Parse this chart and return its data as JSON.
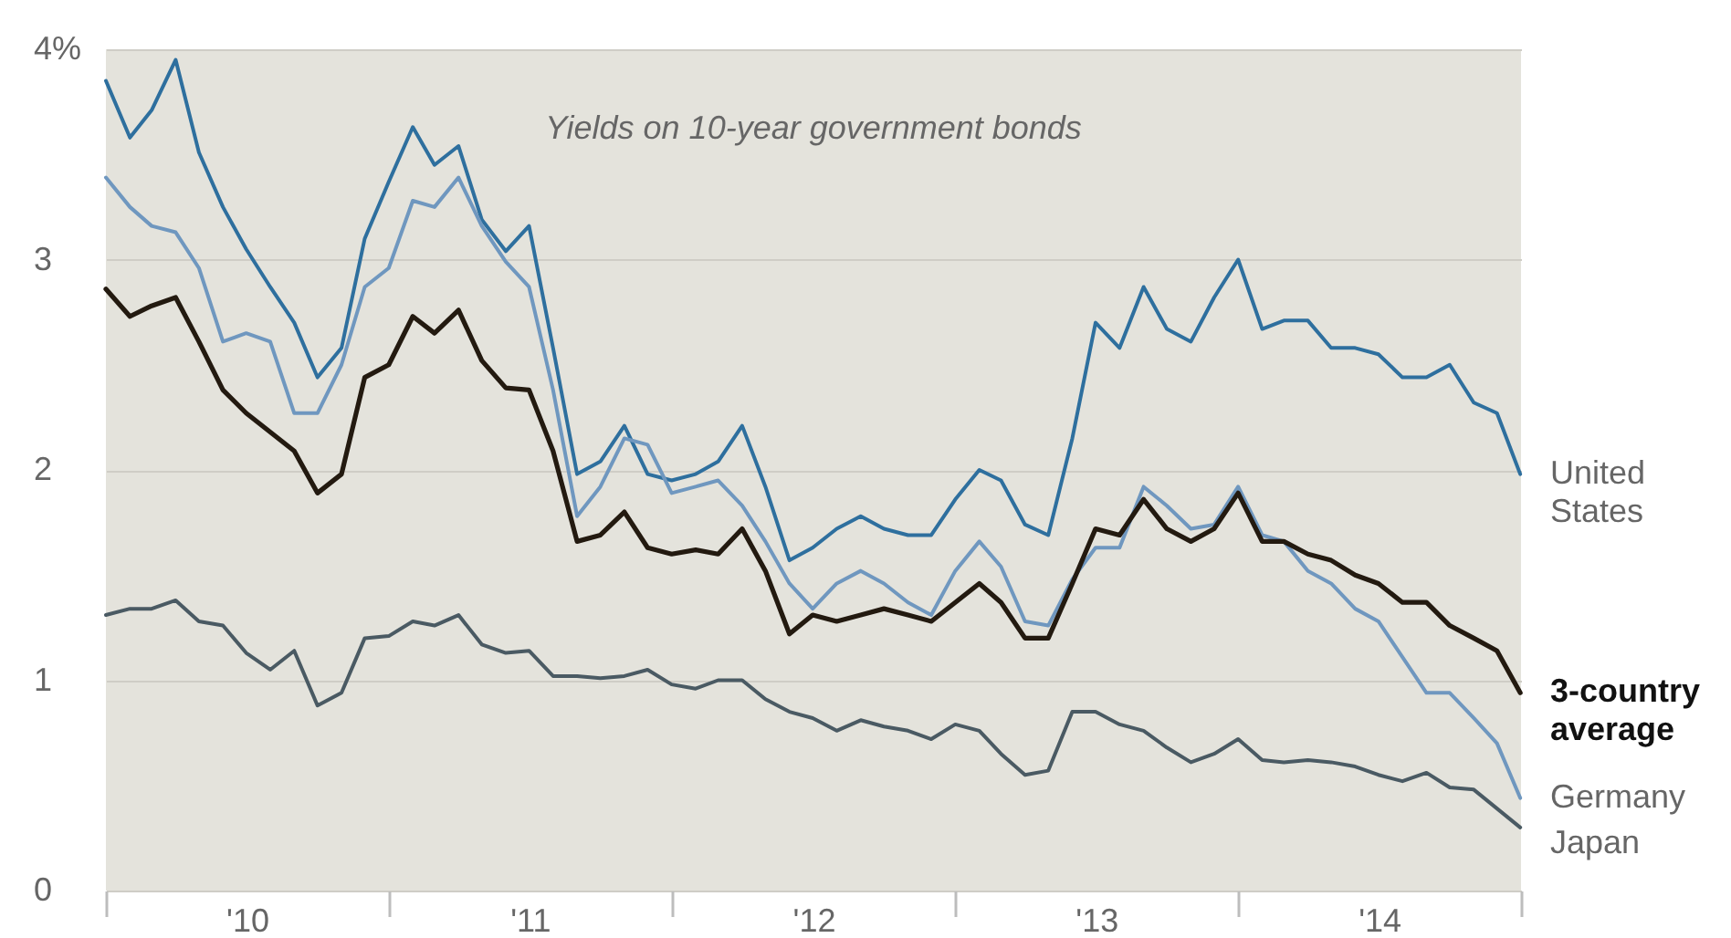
{
  "chart_data": {
    "type": "line",
    "title": "Yields on 10-year government bonds",
    "x": [
      "2010-01",
      "2010-02",
      "2010-03",
      "2010-04",
      "2010-05",
      "2010-06",
      "2010-07",
      "2010-08",
      "2010-09",
      "2010-10",
      "2010-11",
      "2010-12",
      "2011-01",
      "2011-02",
      "2011-03",
      "2011-04",
      "2011-05",
      "2011-06",
      "2011-07",
      "2011-08",
      "2011-09",
      "2011-10",
      "2011-11",
      "2011-12",
      "2012-01",
      "2012-02",
      "2012-03",
      "2012-04",
      "2012-05",
      "2012-06",
      "2012-07",
      "2012-08",
      "2012-09",
      "2012-10",
      "2012-11",
      "2012-12",
      "2013-01",
      "2013-02",
      "2013-03",
      "2013-04",
      "2013-05",
      "2013-06",
      "2013-07",
      "2013-08",
      "2013-09",
      "2013-10",
      "2013-11",
      "2013-12",
      "2014-01",
      "2014-02",
      "2014-03",
      "2014-04",
      "2014-05",
      "2014-06",
      "2014-07",
      "2014-08",
      "2014-09",
      "2014-10",
      "2014-11",
      "2014-12",
      "2014-12-31"
    ],
    "series": [
      {
        "name": "United States",
        "color": "#2e6f9e",
        "values": [
          3.85,
          3.58,
          3.71,
          3.95,
          3.51,
          3.25,
          3.05,
          2.87,
          2.7,
          2.44,
          2.58,
          3.1,
          3.37,
          3.63,
          3.45,
          3.54,
          3.19,
          3.04,
          3.16,
          2.58,
          1.98,
          2.04,
          2.21,
          1.98,
          1.95,
          1.98,
          2.04,
          2.21,
          1.92,
          1.57,
          1.63,
          1.72,
          1.78,
          1.72,
          1.69,
          1.69,
          1.86,
          2.0,
          1.95,
          1.74,
          1.69,
          2.15,
          2.7,
          2.58,
          2.87,
          2.67,
          2.61,
          2.82,
          3.0,
          2.67,
          2.71,
          2.71,
          2.58,
          2.58,
          2.55,
          2.44,
          2.44,
          2.5,
          2.32,
          2.27,
          1.98
        ]
      },
      {
        "name": "Germany",
        "color": "#6f97bf",
        "values": [
          3.39,
          3.25,
          3.16,
          3.13,
          2.96,
          2.61,
          2.65,
          2.61,
          2.27,
          2.27,
          2.5,
          2.87,
          2.96,
          3.28,
          3.25,
          3.39,
          3.16,
          2.99,
          2.87,
          2.38,
          1.78,
          1.92,
          2.15,
          2.12,
          1.89,
          1.92,
          1.95,
          1.83,
          1.66,
          1.46,
          1.34,
          1.46,
          1.52,
          1.46,
          1.37,
          1.31,
          1.52,
          1.66,
          1.54,
          1.28,
          1.26,
          1.48,
          1.63,
          1.63,
          1.92,
          1.83,
          1.72,
          1.74,
          1.92,
          1.69,
          1.66,
          1.52,
          1.46,
          1.34,
          1.28,
          1.11,
          0.94,
          0.94,
          0.82,
          0.7,
          0.44
        ]
      },
      {
        "name": "3-country average",
        "color": "#231a10",
        "values": [
          2.86,
          2.73,
          2.78,
          2.82,
          2.61,
          2.38,
          2.27,
          2.18,
          2.09,
          1.89,
          1.98,
          2.44,
          2.5,
          2.73,
          2.65,
          2.76,
          2.52,
          2.39,
          2.38,
          2.09,
          1.66,
          1.69,
          1.8,
          1.63,
          1.6,
          1.62,
          1.6,
          1.72,
          1.52,
          1.22,
          1.31,
          1.28,
          1.31,
          1.34,
          1.31,
          1.28,
          1.37,
          1.46,
          1.37,
          1.2,
          1.2,
          1.46,
          1.72,
          1.69,
          1.86,
          1.72,
          1.66,
          1.72,
          1.89,
          1.66,
          1.66,
          1.6,
          1.57,
          1.5,
          1.46,
          1.37,
          1.37,
          1.26,
          1.2,
          1.14,
          0.94
        ]
      },
      {
        "name": "Japan",
        "color": "#4a5a63",
        "values": [
          1.31,
          1.34,
          1.34,
          1.38,
          1.28,
          1.26,
          1.13,
          1.05,
          1.14,
          0.88,
          0.94,
          1.2,
          1.21,
          1.28,
          1.26,
          1.31,
          1.17,
          1.13,
          1.14,
          1.02,
          1.02,
          1.01,
          1.02,
          1.05,
          0.98,
          0.96,
          1.0,
          1.0,
          0.91,
          0.85,
          0.82,
          0.76,
          0.81,
          0.78,
          0.76,
          0.72,
          0.79,
          0.76,
          0.65,
          0.55,
          0.57,
          0.85,
          0.85,
          0.79,
          0.76,
          0.68,
          0.61,
          0.65,
          0.72,
          0.62,
          0.61,
          0.62,
          0.61,
          0.59,
          0.55,
          0.52,
          0.56,
          0.49,
          0.48,
          0.39,
          0.3
        ]
      }
    ],
    "xlim": [
      "2010-01-01",
      "2015-01-01"
    ],
    "xticks": [
      {
        "value": "2010-01-01",
        "label": null
      },
      {
        "value": "2010-07-02",
        "label": "'10"
      },
      {
        "value": "2011-01-01",
        "label": null
      },
      {
        "value": "2011-07-02",
        "label": "'11"
      },
      {
        "value": "2012-01-01",
        "label": null
      },
      {
        "value": "2012-07-02",
        "label": "'12"
      },
      {
        "value": "2013-01-01",
        "label": null
      },
      {
        "value": "2013-07-02",
        "label": "'13"
      },
      {
        "value": "2014-01-01",
        "label": null
      },
      {
        "value": "2014-07-02",
        "label": "'14"
      },
      {
        "value": "2015-01-01",
        "label": null
      }
    ],
    "ylim": [
      0,
      4
    ],
    "yticks": [
      0,
      1,
      2,
      3,
      {
        "value": 4,
        "label": "4%"
      }
    ],
    "grid": "y",
    "line_style": "solid",
    "marker": "none"
  }
}
